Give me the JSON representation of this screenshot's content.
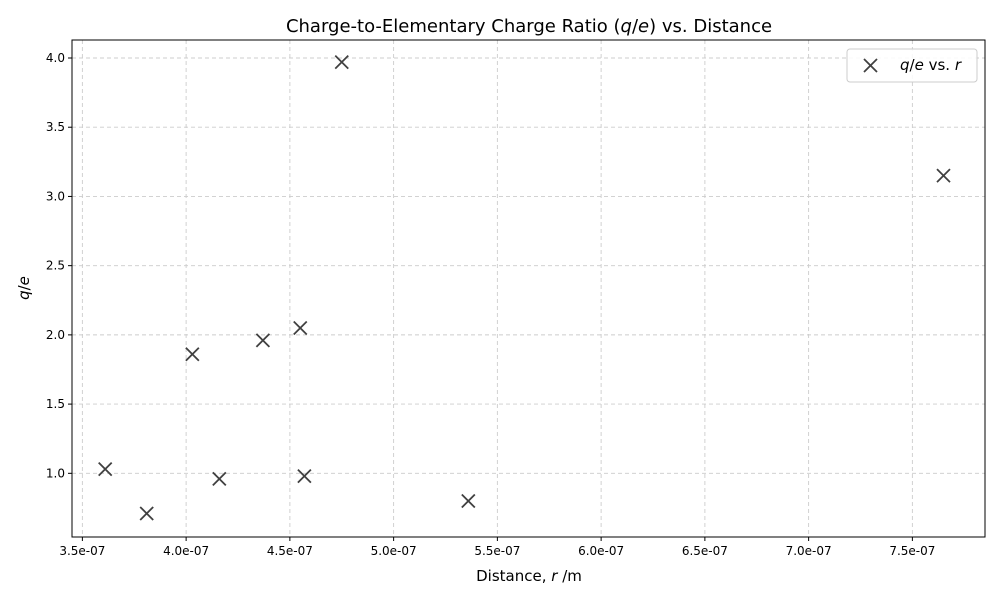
{
  "chart_data": {
    "type": "scatter",
    "title_prefix": "Charge-to-Elementary Charge Ratio (",
    "title_var_q": "q",
    "title_slash": "/",
    "title_var_e": "e",
    "title_suffix": ") vs. Distance",
    "xlabel_prefix": "Distance, ",
    "xlabel_var": "r",
    "xlabel_suffix": " /m",
    "ylabel_var_q": "q",
    "ylabel_slash": "/",
    "ylabel_var_e": "e",
    "xlim": [
      3.45e-07,
      7.85e-07
    ],
    "ylim": [
      0.54,
      4.13
    ],
    "xticks": [
      3.5e-07,
      4e-07,
      4.5e-07,
      5e-07,
      5.5e-07,
      6e-07,
      6.5e-07,
      7e-07,
      7.5e-07
    ],
    "xtick_labels": [
      "3.5e-07",
      "4.0e-07",
      "4.5e-07",
      "5.0e-07",
      "5.5e-07",
      "6.0e-07",
      "6.5e-07",
      "7.0e-07",
      "7.5e-07"
    ],
    "yticks": [
      1.0,
      1.5,
      2.0,
      2.5,
      3.0,
      3.5,
      4.0
    ],
    "ytick_labels": [
      "1.0",
      "1.5",
      "2.0",
      "2.5",
      "3.0",
      "3.5",
      "4.0"
    ],
    "grid": true,
    "legend_position": "top-right",
    "marker_color": "#404040",
    "series": [
      {
        "legend_var_q": "q",
        "legend_slash": "/",
        "legend_var_e": "e",
        "legend_mid": " vs. ",
        "legend_var_r": "r",
        "x": [
          3.61e-07,
          3.81e-07,
          4.03e-07,
          4.16e-07,
          4.37e-07,
          4.55e-07,
          4.57e-07,
          4.75e-07,
          5.36e-07,
          7.65e-07
        ],
        "y": [
          1.03,
          0.71,
          1.86,
          0.96,
          1.96,
          2.05,
          0.98,
          3.97,
          0.8,
          3.15
        ]
      }
    ]
  }
}
